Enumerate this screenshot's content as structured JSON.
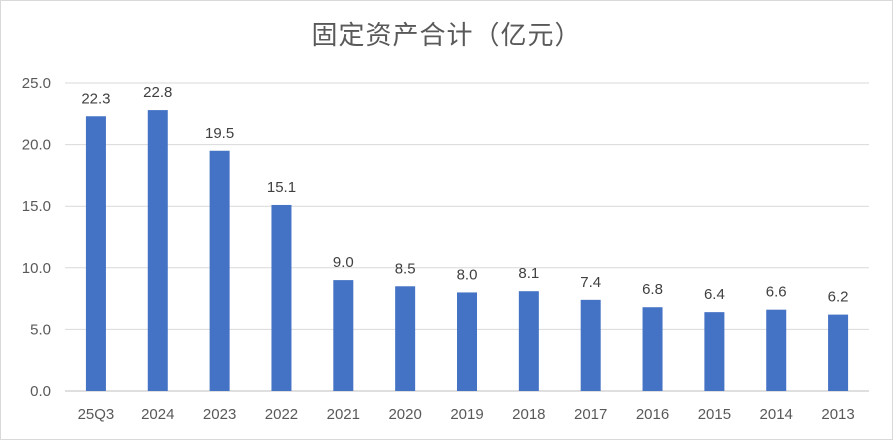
{
  "chart_data": {
    "type": "bar",
    "title": "固定资产合计（亿元）",
    "xlabel": "",
    "ylabel": "",
    "categories": [
      "25Q3",
      "2024",
      "2023",
      "2022",
      "2021",
      "2020",
      "2019",
      "2018",
      "2017",
      "2016",
      "2015",
      "2014",
      "2013"
    ],
    "values": [
      22.3,
      22.8,
      19.5,
      15.1,
      9.0,
      8.5,
      8.0,
      8.1,
      7.4,
      6.8,
      6.4,
      6.6,
      6.2
    ],
    "value_labels": [
      "22.3",
      "22.8",
      "19.5",
      "15.1",
      "9.0",
      "8.5",
      "8.0",
      "8.1",
      "7.4",
      "6.8",
      "6.4",
      "6.6",
      "6.2"
    ],
    "ylim": [
      0,
      25
    ],
    "yticks": [
      "0.0",
      "5.0",
      "10.0",
      "15.0",
      "20.0",
      "25.0"
    ],
    "grid": true,
    "legend": "none",
    "colors": {
      "bar": "#4472C4",
      "grid": "#d9d9d9",
      "text": "#595959"
    }
  }
}
